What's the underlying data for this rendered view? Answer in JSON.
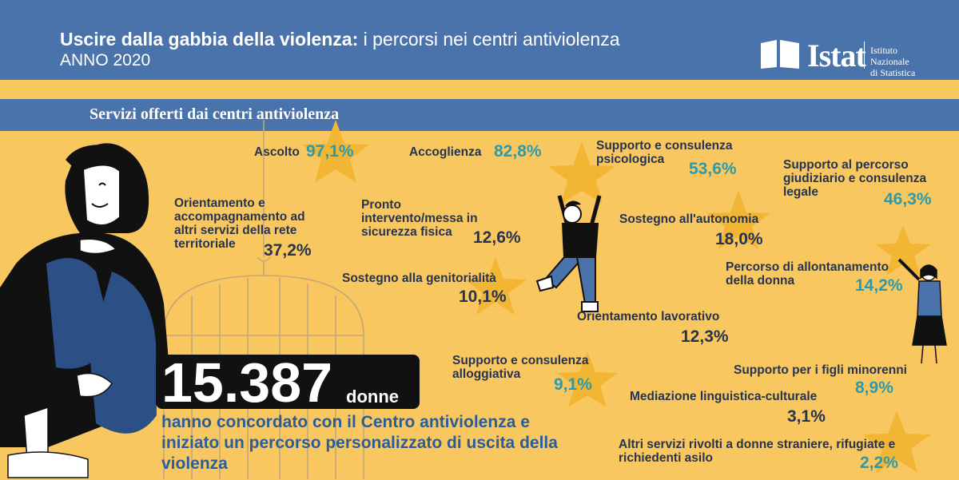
{
  "header": {
    "title_main": "Uscire dalla gabbia della violenza:",
    "title_sub": "i percorsi nei centri antiviolenza",
    "year": "ANNO 2020",
    "logo_name": "Istat",
    "logo_org_line1": "Istituto Nazionale",
    "logo_org_line2": "di Statistica"
  },
  "section": {
    "title": "Servizi offerti dai centri antiviolenza"
  },
  "services": [
    {
      "label": "Ascolto",
      "value": "97,1%"
    },
    {
      "label": "Accoglienza",
      "value": "82,8%"
    },
    {
      "label": "Supporto e consulenza psicologica",
      "value": "53,6%"
    },
    {
      "label": "Supporto al percorso giudiziario e consulenza legale",
      "value": "46,3%"
    },
    {
      "label": "Orientamento e accompagnamento ad altri servizi della rete territoriale",
      "value": "37,2%"
    },
    {
      "label": "Pronto intervento/messa in sicurezza fisica",
      "value": "12,6%"
    },
    {
      "label": "Sostegno all'autonomia",
      "value": "18,0%"
    },
    {
      "label": "Percorso di allontanamento della donna",
      "value": "14,2%"
    },
    {
      "label": "Sostegno alla genitorialità",
      "value": "10,1%"
    },
    {
      "label": "Orientamento lavorativo",
      "value": "12,3%"
    },
    {
      "label": "Supporto e consulenza alloggiativa",
      "value": "9,1%"
    },
    {
      "label": "Supporto per i figli minorenni",
      "value": "8,9%"
    },
    {
      "label": "Mediazione linguistica-culturale",
      "value": "3,1%"
    },
    {
      "label": "Altri servizi rivolti a donne straniere, rifugiate e richiedenti asilo",
      "value": "2,2%"
    }
  ],
  "summary": {
    "number": "15.387",
    "unit": "donne",
    "text": "hanno concordato con il Centro antiviolenza e iniziato un percorso personalizzato di uscita della violenza"
  },
  "colors": {
    "header_blue": "#4a72ab",
    "background_yellow": "#f9c75f",
    "star_yellow": "#f2b534",
    "label_navy": "#27344f",
    "value_teal": "#2a9bad",
    "summary_blue": "#2a5d9a"
  },
  "icons": [
    "star-icon",
    "birdcage-illustration",
    "sitting-woman-illustration",
    "jumping-man-illustration",
    "standing-woman-illustration",
    "istat-logo-icon"
  ]
}
